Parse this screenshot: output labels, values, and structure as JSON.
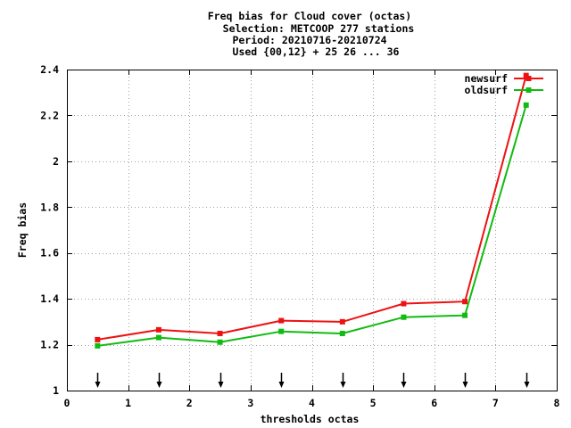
{
  "chart_data": {
    "type": "line",
    "title_lines": [
      "Freq bias  for Cloud cover (octas)",
      "Selection: METCOOP    277 stations",
      "Period: 20210716-20210724",
      "Used {00,12} + 25 26 ... 36"
    ],
    "xlabel": "thresholds octas",
    "ylabel": "Freq bias",
    "xlim": [
      0,
      8
    ],
    "ylim": [
      1,
      2.4
    ],
    "xticks": [
      0,
      1,
      2,
      3,
      4,
      5,
      6,
      7,
      8
    ],
    "yticks": [
      1,
      1.2,
      1.4,
      1.6,
      1.8,
      2,
      2.2,
      2.4
    ],
    "grid": true,
    "legend_position": "top-right",
    "arrow_marks_x": [
      0.5,
      1.5,
      2.5,
      3.5,
      4.5,
      5.5,
      6.5,
      7.5
    ],
    "series": [
      {
        "name": "newsurf",
        "color": "#ee1111",
        "x": [
          0.5,
          1.5,
          2.5,
          3.5,
          4.5,
          5.5,
          6.5,
          7.5
        ],
        "y": [
          1.222,
          1.265,
          1.249,
          1.305,
          1.3,
          1.379,
          1.388,
          2.374
        ]
      },
      {
        "name": "oldsurf",
        "color": "#11bb11",
        "x": [
          0.5,
          1.5,
          2.5,
          3.5,
          4.5,
          5.5,
          6.5,
          7.5
        ],
        "y": [
          1.195,
          1.231,
          1.211,
          1.258,
          1.249,
          1.32,
          1.328,
          2.245
        ]
      }
    ]
  }
}
